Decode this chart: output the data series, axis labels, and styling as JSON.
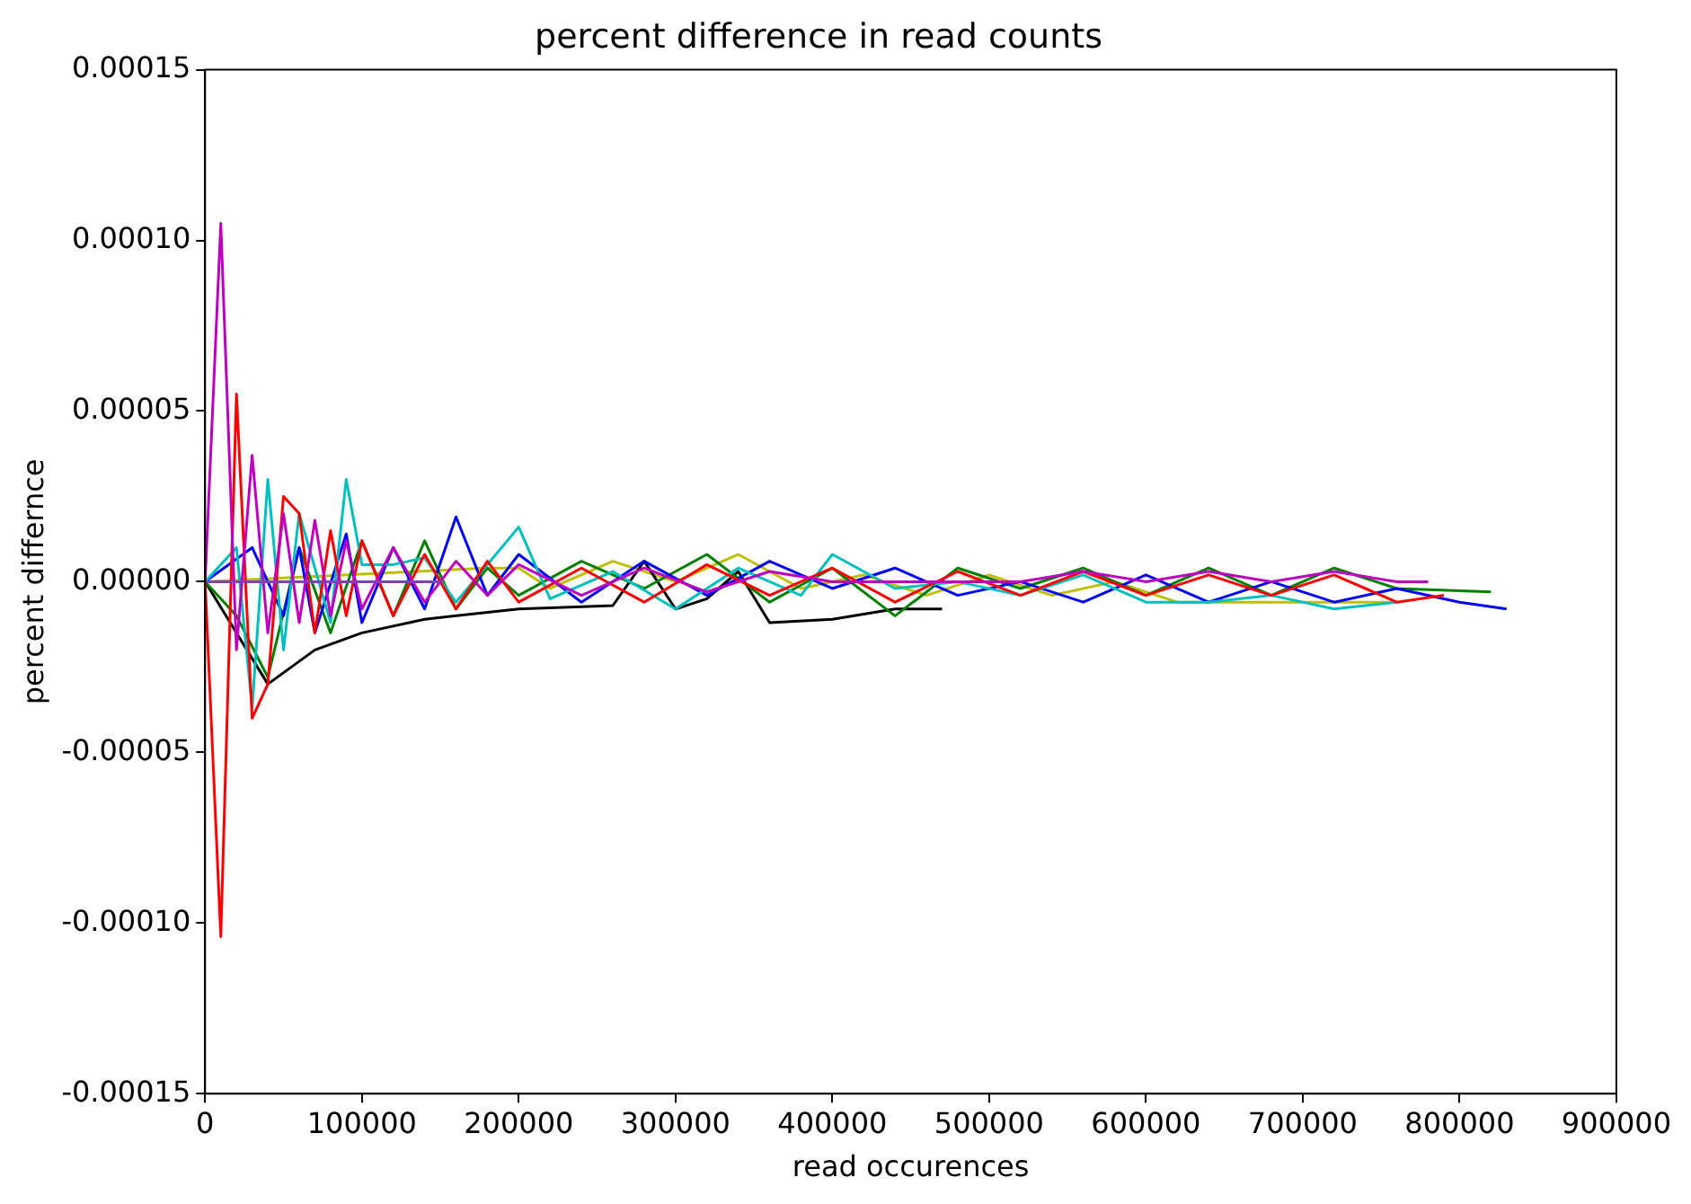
{
  "chart_data": {
    "type": "line",
    "title": "percent difference in read counts",
    "xlabel": "read occurences",
    "ylabel": "percent differnce",
    "xlim": [
      0,
      900000
    ],
    "xticks": [
      0,
      100000,
      200000,
      300000,
      400000,
      500000,
      600000,
      700000,
      800000,
      900000
    ],
    "ylim": [
      -0.00015,
      0.00015
    ],
    "yticks": [
      {
        "value": -0.00015,
        "label": "-0.00015"
      },
      {
        "value": -0.0001,
        "label": "-0.00010"
      },
      {
        "value": -5e-05,
        "label": "-0.00005"
      },
      {
        "value": 0,
        "label": "0.00000"
      },
      {
        "value": 5e-05,
        "label": "0.00005"
      },
      {
        "value": 0.0001,
        "label": "0.00010"
      },
      {
        "value": 0.00015,
        "label": "0.00015"
      }
    ],
    "grid": false,
    "legend": false,
    "marker": "none",
    "line_style": "solid",
    "series": [
      {
        "color": "#bfbf00",
        "x": [
          0,
          180000,
          200000,
          220000,
          260000,
          300000,
          340000,
          380000,
          420000,
          460000,
          500000,
          540000,
          580000,
          620000,
          660000,
          700000,
          760000
        ],
        "values": [
          0,
          4e-06,
          4e-06,
          -2e-06,
          6e-06,
          0,
          8e-06,
          -2e-06,
          2e-06,
          -4e-06,
          2e-06,
          -4e-06,
          0,
          -6e-06,
          -6e-06,
          -6e-06,
          -6e-06
        ]
      },
      {
        "color": "#000000",
        "x": [
          0,
          40000,
          70000,
          100000,
          140000,
          200000,
          260000,
          280000,
          300000,
          320000,
          340000,
          360000,
          400000,
          440000,
          470000
        ],
        "values": [
          0,
          -3e-05,
          -2e-05,
          -1.5e-05,
          -1.1e-05,
          -8e-06,
          -7e-06,
          6e-06,
          -8e-06,
          -5e-06,
          3e-06,
          -1.2e-05,
          -1.1e-05,
          -8e-06,
          -8e-06
        ]
      },
      {
        "color": "#008000",
        "x": [
          0,
          20000,
          40000,
          60000,
          80000,
          100000,
          120000,
          140000,
          160000,
          180000,
          200000,
          240000,
          280000,
          320000,
          360000,
          400000,
          440000,
          480000,
          520000,
          560000,
          600000,
          640000,
          680000,
          720000,
          760000,
          820000
        ],
        "values": [
          0,
          -1e-05,
          -2.8e-05,
          1e-05,
          -1.5e-05,
          1.2e-05,
          -1e-05,
          1.2e-05,
          -8e-06,
          4e-06,
          -4e-06,
          6e-06,
          -2e-06,
          8e-06,
          -6e-06,
          4e-06,
          -1e-05,
          4e-06,
          -2e-06,
          4e-06,
          -4e-06,
          4e-06,
          -4e-06,
          4e-06,
          -2e-06,
          -3e-06
        ]
      },
      {
        "color": "#0000ff",
        "x": [
          0,
          30000,
          50000,
          60000,
          70000,
          90000,
          100000,
          120000,
          140000,
          160000,
          180000,
          200000,
          240000,
          280000,
          320000,
          360000,
          400000,
          440000,
          480000,
          520000,
          560000,
          600000,
          640000,
          680000,
          720000,
          760000,
          800000,
          830000
        ],
        "values": [
          0,
          1e-05,
          -1e-05,
          1e-05,
          -1.5e-05,
          1.4e-05,
          -1.2e-05,
          1e-05,
          -8e-06,
          1.9e-05,
          -4e-06,
          8e-06,
          -6e-06,
          6e-06,
          -4e-06,
          6e-06,
          -2e-06,
          4e-06,
          -4e-06,
          0,
          -6e-06,
          2e-06,
          -6e-06,
          0,
          -6e-06,
          -2e-06,
          -6e-06,
          -8e-06
        ]
      },
      {
        "color": "#00bfbf",
        "x": [
          0,
          20000,
          30000,
          40000,
          50000,
          60000,
          80000,
          90000,
          100000,
          120000,
          140000,
          160000,
          200000,
          220000,
          260000,
          300000,
          340000,
          380000,
          400000,
          440000,
          480000,
          520000,
          560000,
          600000,
          640000,
          680000,
          720000,
          760000
        ],
        "values": [
          0,
          1e-05,
          -3.7e-05,
          3e-05,
          -2e-05,
          2e-05,
          -1.2e-05,
          3e-05,
          5e-06,
          5e-06,
          7e-06,
          -6e-06,
          1.6e-05,
          -5e-06,
          3e-06,
          -8e-06,
          4e-06,
          -4e-06,
          8e-06,
          -2e-06,
          0,
          -4e-06,
          2e-06,
          -6e-06,
          -6e-06,
          -4e-06,
          -8e-06,
          -6e-06
        ]
      },
      {
        "color": "#ff0000",
        "x": [
          0,
          10000,
          20000,
          30000,
          40000,
          50000,
          60000,
          70000,
          80000,
          90000,
          100000,
          120000,
          140000,
          160000,
          180000,
          200000,
          240000,
          280000,
          320000,
          360000,
          400000,
          440000,
          480000,
          520000,
          560000,
          600000,
          640000,
          680000,
          720000,
          760000,
          790000
        ],
        "values": [
          0,
          -0.000104,
          5.5e-05,
          -4e-05,
          -3e-05,
          2.5e-05,
          2e-05,
          -1.5e-05,
          1.5e-05,
          -1e-05,
          1.2e-05,
          -1e-05,
          8e-06,
          -8e-06,
          6e-06,
          -6e-06,
          4e-06,
          -6e-06,
          5e-06,
          -4e-06,
          4e-06,
          -6e-06,
          3e-06,
          -4e-06,
          3e-06,
          -4e-06,
          2e-06,
          -4e-06,
          2e-06,
          -6e-06,
          -4e-06
        ]
      },
      {
        "color": "#bf00bf",
        "x": [
          0,
          10000,
          20000,
          30000,
          40000,
          50000,
          60000,
          70000,
          80000,
          90000,
          100000,
          120000,
          140000,
          160000,
          180000,
          200000,
          240000,
          280000,
          320000,
          360000,
          400000,
          440000,
          480000,
          520000,
          560000,
          600000,
          640000,
          680000,
          720000,
          760000,
          780000
        ],
        "values": [
          0,
          0.000105,
          -2e-05,
          3.7e-05,
          -1.5e-05,
          2e-05,
          -1.2e-05,
          1.8e-05,
          -1e-05,
          1.2e-05,
          -8e-06,
          1e-05,
          -6e-06,
          6e-06,
          -4e-06,
          5e-06,
          -4e-06,
          4e-06,
          -3e-06,
          3e-06,
          0,
          0,
          0,
          0,
          3e-06,
          0,
          3e-06,
          0,
          3e-06,
          0,
          0
        ]
      },
      {
        "color": "#7f3fbf",
        "x": [
          0,
          150000
        ],
        "values": [
          0,
          0
        ]
      }
    ]
  }
}
